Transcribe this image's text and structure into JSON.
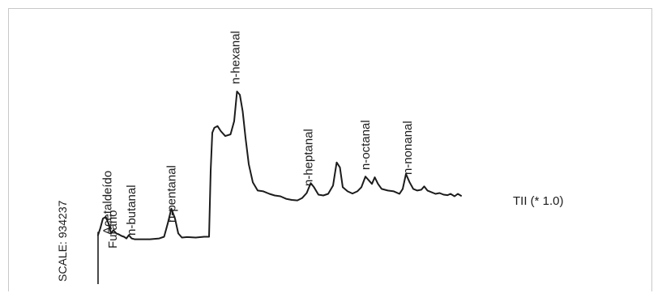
{
  "chart_data": {
    "type": "line",
    "title": "",
    "xlabel": "",
    "ylabel": "",
    "scale_label": "SCALE: 934237",
    "trace_label": "TII (* 1.0)",
    "line_color": "#1c1c1c",
    "grid": false,
    "legend": "none",
    "x_units": "relative retention (0-100)",
    "y_units": "relative response (0-100)",
    "xlim": [
      0,
      100
    ],
    "ylim": [
      0,
      100
    ],
    "series": [
      {
        "points": [
          [
            0,
            13
          ],
          [
            0.6,
            17.5
          ],
          [
            1.2,
            23
          ],
          [
            1.9,
            24
          ],
          [
            2.6,
            20
          ],
          [
            3.2,
            14
          ],
          [
            3.8,
            16
          ],
          [
            4.5,
            14
          ],
          [
            5.1,
            13.5
          ],
          [
            5.8,
            12.5
          ],
          [
            6.4,
            12
          ],
          [
            7.0,
            11
          ],
          [
            7.6,
            13
          ],
          [
            8.3,
            11
          ],
          [
            9.0,
            10.5
          ],
          [
            10.5,
            10.5
          ],
          [
            12.8,
            10.5
          ],
          [
            15.1,
            11
          ],
          [
            16.3,
            12
          ],
          [
            17.2,
            20
          ],
          [
            18.1,
            29
          ],
          [
            19.0,
            23
          ],
          [
            19.8,
            14
          ],
          [
            20.7,
            11.5
          ],
          [
            22.0,
            11.8
          ],
          [
            24.1,
            11.5
          ],
          [
            26.2,
            12
          ],
          [
            27.4,
            12
          ],
          [
            27.8,
            52
          ],
          [
            28.2,
            75
          ],
          [
            28.7,
            78
          ],
          [
            29.5,
            79
          ],
          [
            30.3,
            76
          ],
          [
            31.4,
            73
          ],
          [
            32.7,
            74
          ],
          [
            33.6,
            82
          ],
          [
            34.3,
            100
          ],
          [
            35.0,
            98
          ],
          [
            35.7,
            88
          ],
          [
            36.4,
            72
          ],
          [
            37.2,
            56
          ],
          [
            38.2,
            45
          ],
          [
            39.4,
            40
          ],
          [
            40.8,
            39.5
          ],
          [
            42.3,
            38
          ],
          [
            43.6,
            37
          ],
          [
            45.0,
            36.5
          ],
          [
            46.4,
            35
          ],
          [
            47.8,
            34.3
          ],
          [
            49.2,
            34
          ],
          [
            50.4,
            35.5
          ],
          [
            51.5,
            38.5
          ],
          [
            52.5,
            44.5
          ],
          [
            53.3,
            42
          ],
          [
            54.4,
            37.5
          ],
          [
            55.6,
            37
          ],
          [
            56.8,
            38
          ],
          [
            58.0,
            43
          ],
          [
            58.9,
            57
          ],
          [
            59.7,
            54
          ],
          [
            60.4,
            42
          ],
          [
            61.6,
            39.5
          ],
          [
            62.8,
            38.2
          ],
          [
            64.0,
            39.5
          ],
          [
            65.0,
            42
          ],
          [
            66.0,
            48.5
          ],
          [
            66.9,
            46
          ],
          [
            67.6,
            44
          ],
          [
            68.3,
            48
          ],
          [
            69.1,
            44
          ],
          [
            70.0,
            41
          ],
          [
            71.5,
            40
          ],
          [
            73.0,
            39.5
          ],
          [
            74.4,
            38
          ],
          [
            75.2,
            41
          ],
          [
            76.0,
            50
          ],
          [
            76.9,
            45
          ],
          [
            77.8,
            41
          ],
          [
            78.8,
            40
          ],
          [
            79.8,
            40.5
          ],
          [
            80.5,
            42.5
          ],
          [
            81.3,
            40
          ],
          [
            83.3,
            38
          ],
          [
            84.3,
            38.5
          ],
          [
            85.3,
            37.5
          ],
          [
            86.3,
            37.2
          ],
          [
            87.0,
            38
          ],
          [
            88.0,
            36.5
          ],
          [
            88.8,
            38
          ],
          [
            89.6,
            36.8
          ]
        ]
      }
    ],
    "peaks": [
      {
        "label": "Acetaldeído",
        "x": 1.9,
        "y": 24
      },
      {
        "label": "Furano",
        "x": 3.8,
        "y": 16
      },
      {
        "label": "n-butanal",
        "x": 7.6,
        "y": 13
      },
      {
        "label": "n-pentanal",
        "x": 18.1,
        "y": 29
      },
      {
        "label": "n-hexanal",
        "x": 34.3,
        "y": 100
      },
      {
        "label": "n-heptanal",
        "x": 51.5,
        "y": 38.5
      },
      {
        "label": "n-octanal",
        "x": 66.0,
        "y": 48.5
      },
      {
        "label": "n-nonanal",
        "x": 76.0,
        "y": 50
      }
    ]
  }
}
